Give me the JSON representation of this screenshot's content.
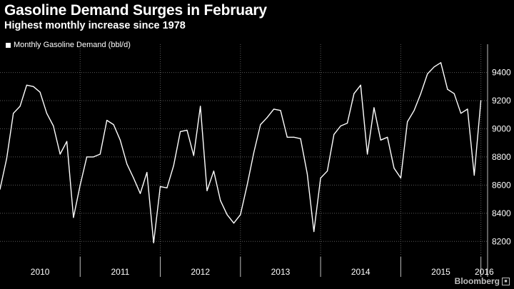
{
  "chart_data": {
    "type": "line",
    "title": "Gasoline Demand Surges in February",
    "subtitle": "Highest monthly increase since 1978",
    "legend": [
      "Monthly Gasoline Demand (bbl/d)"
    ],
    "legend_position": "top-left",
    "x_ticks": [
      "2010",
      "2011",
      "2012",
      "2013",
      "2014",
      "2015",
      "2016"
    ],
    "y_ticks": [
      8200,
      8400,
      8600,
      8800,
      9000,
      9200,
      9400
    ],
    "ylim": [
      8090,
      9560
    ],
    "xlim": [
      0,
      73
    ],
    "grid": true,
    "series": [
      {
        "name": "Monthly Gasoline Demand (bbl/d)",
        "x": [
          0,
          1,
          2,
          3,
          4,
          5,
          6,
          7,
          8,
          9,
          10,
          11,
          12,
          13,
          14,
          15,
          16,
          17,
          18,
          19,
          20,
          21,
          22,
          23,
          24,
          25,
          26,
          27,
          28,
          29,
          30,
          31,
          32,
          33,
          34,
          35,
          36,
          37,
          38,
          39,
          40,
          41,
          42,
          43,
          44,
          45,
          46,
          47,
          48,
          49,
          50,
          51,
          52,
          53,
          54,
          55,
          56,
          57,
          58,
          59,
          60,
          61,
          62,
          63,
          64,
          65,
          66,
          67,
          68,
          69,
          70,
          71,
          72
        ],
        "values": [
          8570,
          8790,
          9110,
          9160,
          9310,
          9300,
          9260,
          9110,
          9020,
          8820,
          8910,
          8370,
          8600,
          8800,
          8800,
          8820,
          9060,
          9030,
          8920,
          8750,
          8650,
          8540,
          8690,
          8190,
          8590,
          8580,
          8740,
          8980,
          8990,
          8810,
          9160,
          8560,
          8700,
          8490,
          8390,
          8330,
          8390,
          8600,
          8830,
          9030,
          9080,
          9140,
          9130,
          8940,
          8940,
          8930,
          8680,
          8270,
          8650,
          8700,
          8960,
          9020,
          9040,
          9250,
          9310,
          8820,
          9150,
          8920,
          8940,
          8720,
          8650,
          9050,
          9130,
          9250,
          9390,
          9440,
          9470,
          9280,
          9250,
          9110,
          9140,
          8670,
          9200
        ]
      }
    ],
    "source": "Bloomberg"
  }
}
